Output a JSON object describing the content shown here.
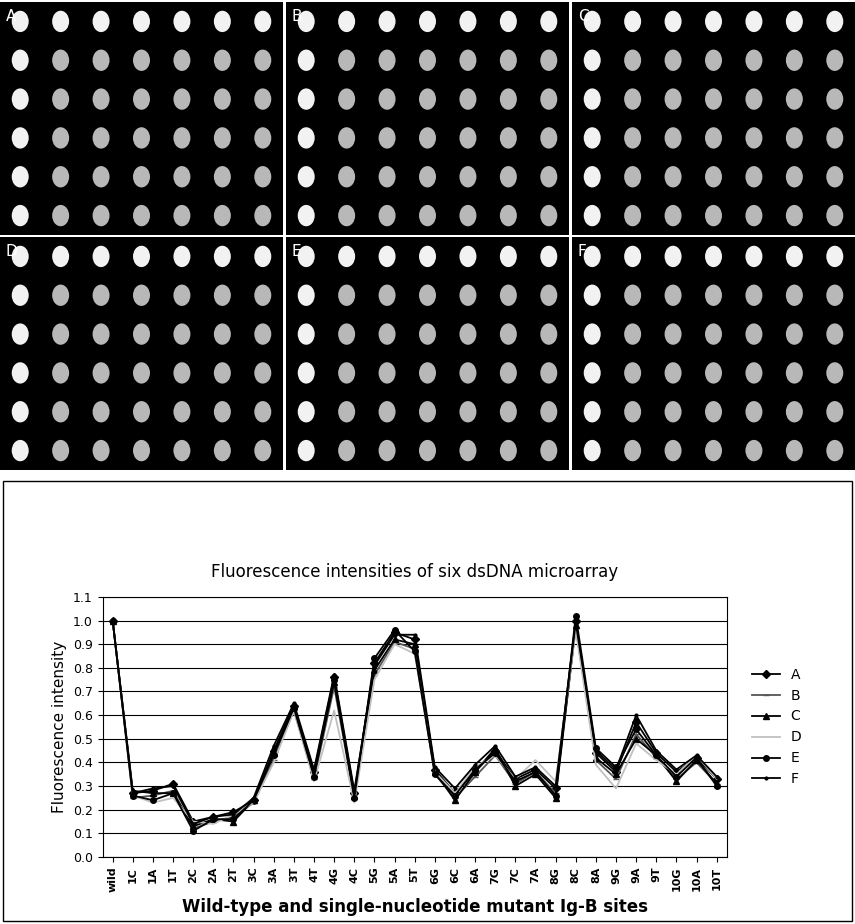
{
  "panels": {
    "labels": [
      "A",
      "B",
      "C",
      "D",
      "E",
      "F"
    ]
  },
  "chart_data": {
    "type": "line",
    "title": "Fluorescence intensities of six dsDNA microarray",
    "x_label": "Wild-type and single-nucleotide mutant Ig-B sites",
    "y_label": "Fluorescence intensity",
    "categories": [
      "wild",
      "1C",
      "1A",
      "1T",
      "2C",
      "2A",
      "2T",
      "3C",
      "3A",
      "3T",
      "4T",
      "4G",
      "4C",
      "5G",
      "5A",
      "5T",
      "6G",
      "6C",
      "6A",
      "7G",
      "7C",
      "7A",
      "8G",
      "8C",
      "8A",
      "9G",
      "9A",
      "9T",
      "10G",
      "10A",
      "10T"
    ],
    "series": [
      {
        "name": "A",
        "color": "#000000",
        "marker": "diamond",
        "values": [
          1.0,
          0.27,
          0.28,
          0.31,
          0.15,
          0.17,
          0.19,
          0.24,
          0.45,
          0.64,
          0.36,
          0.76,
          0.27,
          0.82,
          0.95,
          0.92,
          0.37,
          0.27,
          0.36,
          0.45,
          0.33,
          0.37,
          0.29,
          1.0,
          0.44,
          0.36,
          0.57,
          0.44,
          0.36,
          0.42,
          0.33
        ]
      },
      {
        "name": "B",
        "color": "#555555",
        "marker": "dash",
        "values": [
          1.0,
          0.25,
          0.26,
          0.28,
          0.12,
          0.15,
          0.17,
          0.23,
          0.41,
          0.62,
          0.33,
          0.72,
          0.25,
          0.77,
          0.91,
          0.88,
          0.35,
          0.25,
          0.34,
          0.43,
          0.31,
          0.36,
          0.27,
          0.97,
          0.41,
          0.33,
          0.52,
          0.42,
          0.33,
          0.4,
          0.31
        ]
      },
      {
        "name": "C",
        "color": "#000000",
        "marker": "triangle",
        "values": [
          1.0,
          0.28,
          0.27,
          0.27,
          0.13,
          0.16,
          0.15,
          0.24,
          0.44,
          0.64,
          0.35,
          0.74,
          0.26,
          0.79,
          0.92,
          0.9,
          0.36,
          0.24,
          0.36,
          0.46,
          0.3,
          0.35,
          0.25,
          0.98,
          0.42,
          0.35,
          0.5,
          0.43,
          0.32,
          0.41,
          0.31
        ]
      },
      {
        "name": "D",
        "color": "#c0c0c0",
        "marker": "none",
        "values": [
          1.0,
          0.26,
          0.23,
          0.25,
          0.15,
          0.14,
          0.18,
          0.23,
          0.4,
          0.62,
          0.32,
          0.62,
          0.23,
          0.75,
          0.9,
          0.86,
          0.36,
          0.27,
          0.38,
          0.43,
          0.33,
          0.41,
          0.32,
          0.96,
          0.39,
          0.29,
          0.48,
          0.41,
          0.35,
          0.43,
          0.33
        ]
      },
      {
        "name": "E",
        "color": "#000000",
        "marker": "circle",
        "values": [
          1.0,
          0.26,
          0.24,
          0.27,
          0.11,
          0.16,
          0.16,
          0.24,
          0.43,
          0.63,
          0.34,
          0.75,
          0.25,
          0.84,
          0.96,
          0.87,
          0.35,
          0.26,
          0.37,
          0.44,
          0.32,
          0.36,
          0.26,
          1.02,
          0.46,
          0.38,
          0.54,
          0.43,
          0.34,
          0.42,
          0.3
        ]
      },
      {
        "name": "F",
        "color": "#000000",
        "marker": "point",
        "values": [
          1.0,
          0.27,
          0.29,
          0.3,
          0.14,
          0.17,
          0.18,
          0.25,
          0.47,
          0.65,
          0.37,
          0.77,
          0.28,
          0.81,
          0.94,
          0.94,
          0.38,
          0.29,
          0.39,
          0.47,
          0.34,
          0.38,
          0.3,
          0.99,
          0.45,
          0.37,
          0.6,
          0.45,
          0.37,
          0.43,
          0.34
        ]
      }
    ],
    "ylim": [
      0,
      1.1
    ],
    "yticks": [
      {
        "value": 0,
        "label": "0.0"
      },
      {
        "value": 0.1,
        "label": "0.1"
      },
      {
        "value": 0.2,
        "label": "0.2"
      },
      {
        "value": 0.3,
        "label": "0.3"
      },
      {
        "value": 0.4,
        "label": "0.4"
      },
      {
        "value": 0.5,
        "label": "0.5"
      },
      {
        "value": 0.6,
        "label": "0.6"
      },
      {
        "value": 0.7,
        "label": "0.7"
      },
      {
        "value": 0.8,
        "label": "0.8"
      },
      {
        "value": 0.9,
        "label": "0.9"
      },
      {
        "value": 1.0,
        "label": "1.0"
      },
      {
        "value": 1.1,
        "label": "1.1"
      }
    ],
    "grid": true,
    "legend": "right"
  }
}
